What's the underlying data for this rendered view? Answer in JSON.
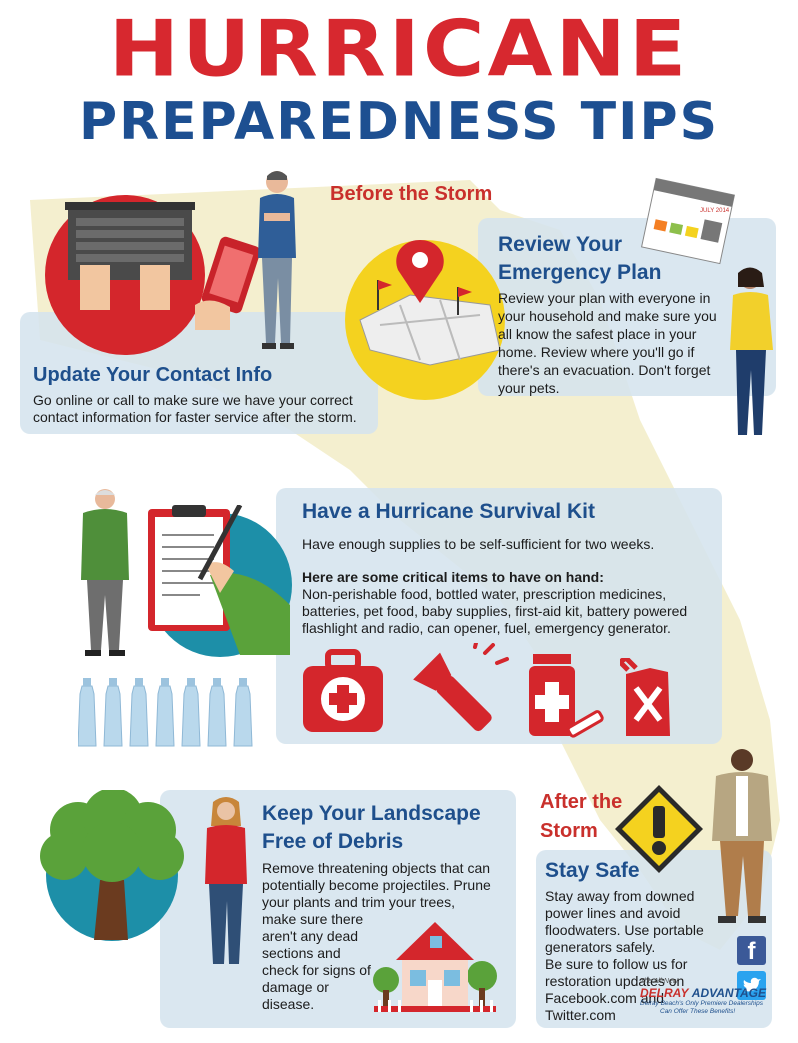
{
  "header": {
    "title_line1": "HURRICANE",
    "title_line2": "PREPAREDNESS TIPS"
  },
  "before_storm": {
    "label": "Before the Storm",
    "contact": {
      "heading": "Update Your Contact Info",
      "body": "Go online or call to make sure we have your correct contact information for faster service after the storm."
    },
    "plan": {
      "heading_line1": "Review Your",
      "heading_line2": "Emergency Plan",
      "body": "Review your plan with everyone in your household and make sure you all know the safest place in your home. Review where you'll go if there's an evacuation. Don't forget your pets.",
      "calendar_label": "JULY 2014"
    },
    "kit": {
      "heading": "Have a Hurricane Survival Kit",
      "intro": "Have enough supplies to be self-sufficient for two weeks.",
      "items_heading": "Here are some critical items to have on hand:",
      "items_body": "Non-perishable food, bottled water, prescription medicines, batteries, pet food, baby supplies, first-aid kit, battery powered flashlight and radio, can opener, fuel, emergency generator."
    },
    "landscape": {
      "heading_line1": "Keep Your Landscape",
      "heading_line2": "Free of Debris",
      "body_wide": "Remove threatening objects that can potentially become projectiles. Prune your plants and trim your trees,",
      "body_narrow": "make sure there aren't any dead sections and check for signs of damage or disease."
    }
  },
  "after_storm": {
    "label_line1": "After the",
    "label_line2": "Storm",
    "safe": {
      "heading": "Stay Safe",
      "body": "Stay away from downed power lines and avoid floodwaters. Use portable generators safely.",
      "follow": "Be sure to follow us for restoration updates on Facebook.com and Twitter.com"
    }
  },
  "social": {
    "facebook_glyph": "f",
    "twitter_glyph": "t"
  },
  "sponsor": {
    "logo_top": "The All-New",
    "logo_main_1": "DELRAY",
    "logo_main_2": "ADVANTAGE",
    "tagline_1": "Delray Beach's Only Premiere Dealerships",
    "tagline_2": "Can Offer These Benefits!"
  },
  "colors": {
    "red": "#d7282f",
    "navy": "#1d4f91",
    "panel": "#d5e4ee",
    "yellow": "#f4d21f",
    "teal": "#1d8fa8",
    "green": "#5aa23a"
  }
}
